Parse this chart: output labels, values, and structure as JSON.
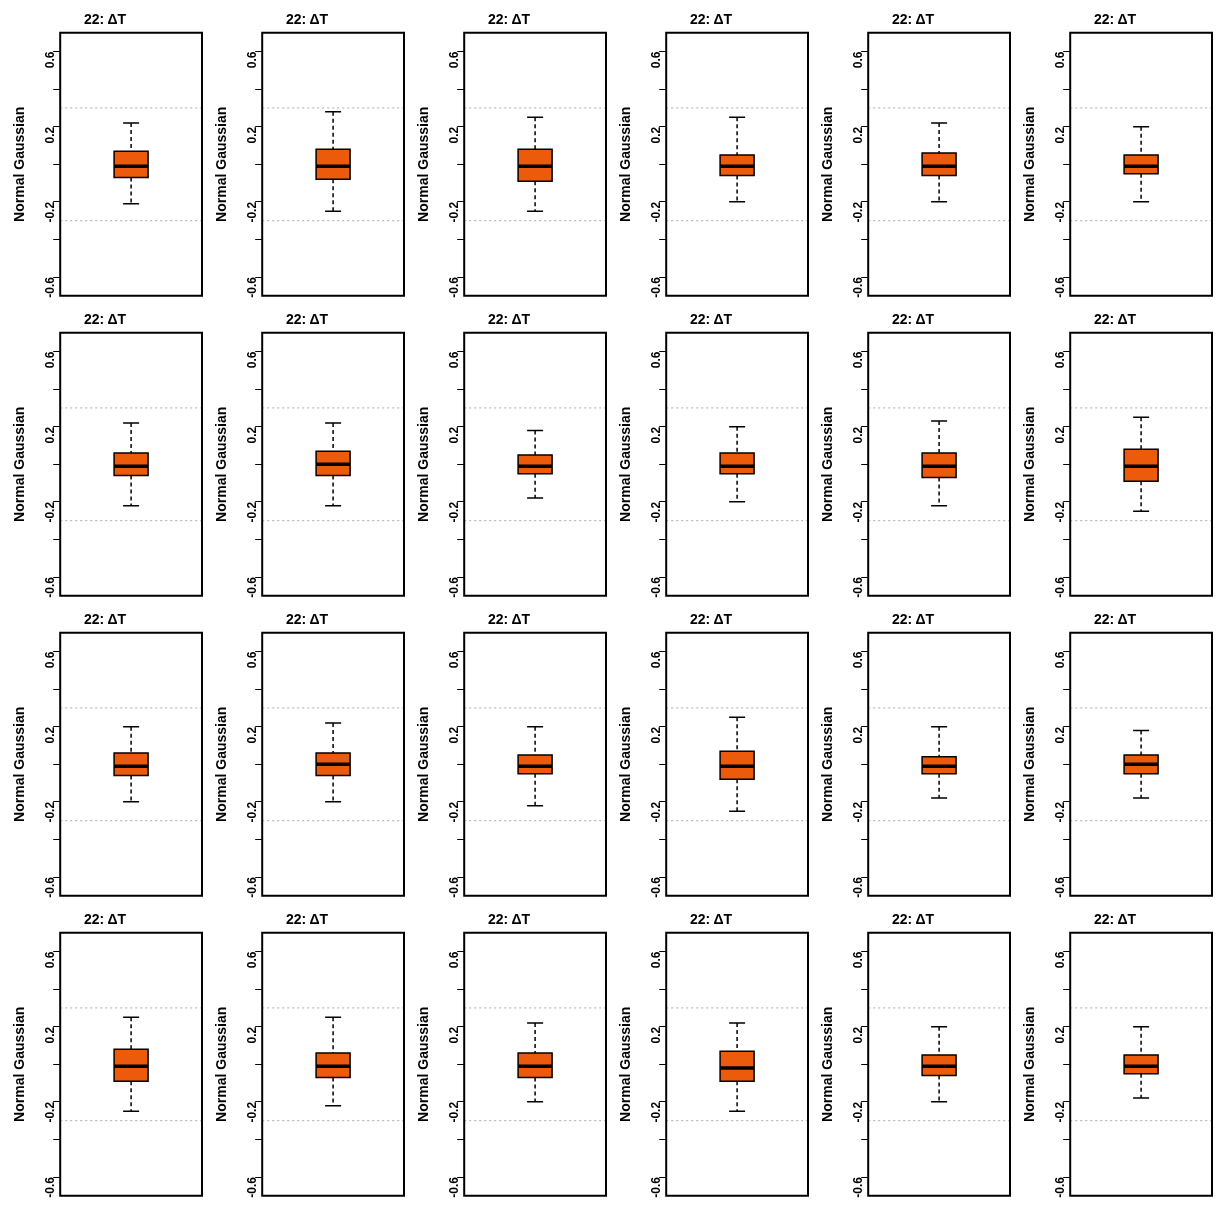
{
  "chart_data": [
    {
      "type": "box",
      "title": "22: ΔT",
      "ylabel": "Normal Gaussian",
      "categories": [
        null
      ],
      "color": "#ec5a0c",
      "ylim": [
        -0.7,
        0.7
      ],
      "yticks": [
        -0.6,
        {
          "value": -0.4,
          "label": null
        },
        -0.2,
        {
          "value": 0,
          "label": null
        },
        0.2,
        {
          "value": 0.4,
          "label": null
        },
        0.6
      ],
      "ref_lines": [
        {
          "axis": "y",
          "value": 0.3,
          "line_style": "dotted",
          "color": "#aaaaaa"
        },
        {
          "axis": "y",
          "value": -0.3,
          "line_style": "dotted",
          "color": "#aaaaaa"
        }
      ],
      "boxes": [
        {
          "low": -0.21,
          "q1": -0.07,
          "median": -0.01,
          "q3": 0.07,
          "high": 0.22
        }
      ]
    },
    {
      "type": "box",
      "title": "22: ΔT",
      "ylabel": "Normal Gaussian",
      "categories": [
        null
      ],
      "color": "#ec5a0c",
      "ylim": [
        -0.7,
        0.7
      ],
      "yticks": [
        -0.6,
        {
          "value": -0.4,
          "label": null
        },
        -0.2,
        {
          "value": 0,
          "label": null
        },
        0.2,
        {
          "value": 0.4,
          "label": null
        },
        0.6
      ],
      "ref_lines": [
        {
          "axis": "y",
          "value": 0.3,
          "line_style": "dotted",
          "color": "#aaaaaa"
        },
        {
          "axis": "y",
          "value": -0.3,
          "line_style": "dotted",
          "color": "#aaaaaa"
        }
      ],
      "boxes": [
        {
          "low": -0.25,
          "q1": -0.08,
          "median": -0.01,
          "q3": 0.08,
          "high": 0.28
        }
      ]
    },
    {
      "type": "box",
      "title": "22: ΔT",
      "ylabel": "Normal Gaussian",
      "categories": [
        null
      ],
      "color": "#ec5a0c",
      "ylim": [
        -0.7,
        0.7
      ],
      "yticks": [
        -0.6,
        {
          "value": -0.4,
          "label": null
        },
        -0.2,
        {
          "value": 0,
          "label": null
        },
        0.2,
        {
          "value": 0.4,
          "label": null
        },
        0.6
      ],
      "ref_lines": [
        {
          "axis": "y",
          "value": 0.3,
          "line_style": "dotted",
          "color": "#aaaaaa"
        },
        {
          "axis": "y",
          "value": -0.3,
          "line_style": "dotted",
          "color": "#aaaaaa"
        }
      ],
      "boxes": [
        {
          "low": -0.25,
          "q1": -0.09,
          "median": -0.01,
          "q3": 0.08,
          "high": 0.25
        }
      ]
    },
    {
      "type": "box",
      "title": "22: ΔT",
      "ylabel": "Normal Gaussian",
      "categories": [
        null
      ],
      "color": "#ec5a0c",
      "ylim": [
        -0.7,
        0.7
      ],
      "yticks": [
        -0.6,
        {
          "value": -0.4,
          "label": null
        },
        -0.2,
        {
          "value": 0,
          "label": null
        },
        0.2,
        {
          "value": 0.4,
          "label": null
        },
        0.6
      ],
      "ref_lines": [
        {
          "axis": "y",
          "value": 0.3,
          "line_style": "dotted",
          "color": "#aaaaaa"
        },
        {
          "axis": "y",
          "value": -0.3,
          "line_style": "dotted",
          "color": "#aaaaaa"
        }
      ],
      "boxes": [
        {
          "low": -0.2,
          "q1": -0.06,
          "median": -0.01,
          "q3": 0.05,
          "high": 0.25
        }
      ]
    },
    {
      "type": "box",
      "title": "22: ΔT",
      "ylabel": "Normal Gaussian",
      "categories": [
        null
      ],
      "color": "#ec5a0c",
      "ylim": [
        -0.7,
        0.7
      ],
      "yticks": [
        -0.6,
        {
          "value": -0.4,
          "label": null
        },
        -0.2,
        {
          "value": 0,
          "label": null
        },
        0.2,
        {
          "value": 0.4,
          "label": null
        },
        0.6
      ],
      "ref_lines": [
        {
          "axis": "y",
          "value": 0.3,
          "line_style": "dotted",
          "color": "#aaaaaa"
        },
        {
          "axis": "y",
          "value": -0.3,
          "line_style": "dotted",
          "color": "#aaaaaa"
        }
      ],
      "boxes": [
        {
          "low": -0.2,
          "q1": -0.06,
          "median": -0.01,
          "q3": 0.06,
          "high": 0.22
        }
      ]
    },
    {
      "type": "box",
      "title": "22: ΔT",
      "ylabel": "Normal Gaussian",
      "categories": [
        null
      ],
      "color": "#ec5a0c",
      "ylim": [
        -0.7,
        0.7
      ],
      "yticks": [
        -0.6,
        {
          "value": -0.4,
          "label": null
        },
        -0.2,
        {
          "value": 0,
          "label": null
        },
        0.2,
        {
          "value": 0.4,
          "label": null
        },
        0.6
      ],
      "ref_lines": [
        {
          "axis": "y",
          "value": 0.3,
          "line_style": "dotted",
          "color": "#aaaaaa"
        },
        {
          "axis": "y",
          "value": -0.3,
          "line_style": "dotted",
          "color": "#aaaaaa"
        }
      ],
      "boxes": [
        {
          "low": -0.2,
          "q1": -0.05,
          "median": -0.01,
          "q3": 0.05,
          "high": 0.2
        }
      ]
    },
    {
      "type": "box",
      "title": "22: ΔT",
      "ylabel": "Normal Gaussian",
      "categories": [
        null
      ],
      "color": "#ec5a0c",
      "ylim": [
        -0.7,
        0.7
      ],
      "yticks": [
        -0.6,
        {
          "value": -0.4,
          "label": null
        },
        -0.2,
        {
          "value": 0,
          "label": null
        },
        0.2,
        {
          "value": 0.4,
          "label": null
        },
        0.6
      ],
      "ref_lines": [
        {
          "axis": "y",
          "value": 0.3,
          "line_style": "dotted",
          "color": "#aaaaaa"
        },
        {
          "axis": "y",
          "value": -0.3,
          "line_style": "dotted",
          "color": "#aaaaaa"
        }
      ],
      "boxes": [
        {
          "low": -0.22,
          "q1": -0.06,
          "median": -0.01,
          "q3": 0.06,
          "high": 0.22
        }
      ]
    },
    {
      "type": "box",
      "title": "22: ΔT",
      "ylabel": "Normal Gaussian",
      "categories": [
        null
      ],
      "color": "#ec5a0c",
      "ylim": [
        -0.7,
        0.7
      ],
      "yticks": [
        -0.6,
        {
          "value": -0.4,
          "label": null
        },
        -0.2,
        {
          "value": 0,
          "label": null
        },
        0.2,
        {
          "value": 0.4,
          "label": null
        },
        0.6
      ],
      "ref_lines": [
        {
          "axis": "y",
          "value": 0.3,
          "line_style": "dotted",
          "color": "#aaaaaa"
        },
        {
          "axis": "y",
          "value": -0.3,
          "line_style": "dotted",
          "color": "#aaaaaa"
        }
      ],
      "boxes": [
        {
          "low": -0.22,
          "q1": -0.06,
          "median": 0,
          "q3": 0.07,
          "high": 0.22
        }
      ]
    },
    {
      "type": "box",
      "title": "22: ΔT",
      "ylabel": "Normal Gaussian",
      "categories": [
        null
      ],
      "color": "#ec5a0c",
      "ylim": [
        -0.7,
        0.7
      ],
      "yticks": [
        -0.6,
        {
          "value": -0.4,
          "label": null
        },
        -0.2,
        {
          "value": 0,
          "label": null
        },
        0.2,
        {
          "value": 0.4,
          "label": null
        },
        0.6
      ],
      "ref_lines": [
        {
          "axis": "y",
          "value": 0.3,
          "line_style": "dotted",
          "color": "#aaaaaa"
        },
        {
          "axis": "y",
          "value": -0.3,
          "line_style": "dotted",
          "color": "#aaaaaa"
        }
      ],
      "boxes": [
        {
          "low": -0.18,
          "q1": -0.05,
          "median": -0.01,
          "q3": 0.05,
          "high": 0.18
        }
      ]
    },
    {
      "type": "box",
      "title": "22: ΔT",
      "ylabel": "Normal Gaussian",
      "categories": [
        null
      ],
      "color": "#ec5a0c",
      "ylim": [
        -0.7,
        0.7
      ],
      "yticks": [
        -0.6,
        {
          "value": -0.4,
          "label": null
        },
        -0.2,
        {
          "value": 0,
          "label": null
        },
        0.2,
        {
          "value": 0.4,
          "label": null
        },
        0.6
      ],
      "ref_lines": [
        {
          "axis": "y",
          "value": 0.3,
          "line_style": "dotted",
          "color": "#aaaaaa"
        },
        {
          "axis": "y",
          "value": -0.3,
          "line_style": "dotted",
          "color": "#aaaaaa"
        }
      ],
      "boxes": [
        {
          "low": -0.2,
          "q1": -0.05,
          "median": -0.01,
          "q3": 0.06,
          "high": 0.2
        }
      ]
    },
    {
      "type": "box",
      "title": "22: ΔT",
      "ylabel": "Normal Gaussian",
      "categories": [
        null
      ],
      "color": "#ec5a0c",
      "ylim": [
        -0.7,
        0.7
      ],
      "yticks": [
        -0.6,
        {
          "value": -0.4,
          "label": null
        },
        -0.2,
        {
          "value": 0,
          "label": null
        },
        0.2,
        {
          "value": 0.4,
          "label": null
        },
        0.6
      ],
      "ref_lines": [
        {
          "axis": "y",
          "value": 0.3,
          "line_style": "dotted",
          "color": "#aaaaaa"
        },
        {
          "axis": "y",
          "value": -0.3,
          "line_style": "dotted",
          "color": "#aaaaaa"
        }
      ],
      "boxes": [
        {
          "low": -0.22,
          "q1": -0.07,
          "median": -0.01,
          "q3": 0.06,
          "high": 0.23
        }
      ]
    },
    {
      "type": "box",
      "title": "22: ΔT",
      "ylabel": "Normal Gaussian",
      "categories": [
        null
      ],
      "color": "#ec5a0c",
      "ylim": [
        -0.7,
        0.7
      ],
      "yticks": [
        -0.6,
        {
          "value": -0.4,
          "label": null
        },
        -0.2,
        {
          "value": 0,
          "label": null
        },
        0.2,
        {
          "value": 0.4,
          "label": null
        },
        0.6
      ],
      "ref_lines": [
        {
          "axis": "y",
          "value": 0.3,
          "line_style": "dotted",
          "color": "#aaaaaa"
        },
        {
          "axis": "y",
          "value": -0.3,
          "line_style": "dotted",
          "color": "#aaaaaa"
        }
      ],
      "boxes": [
        {
          "low": -0.25,
          "q1": -0.09,
          "median": -0.01,
          "q3": 0.08,
          "high": 0.25
        }
      ]
    },
    {
      "type": "box",
      "title": "22: ΔT",
      "ylabel": "Normal Gaussian",
      "categories": [
        null
      ],
      "color": "#ec5a0c",
      "ylim": [
        -0.7,
        0.7
      ],
      "yticks": [
        -0.6,
        {
          "value": -0.4,
          "label": null
        },
        -0.2,
        {
          "value": 0,
          "label": null
        },
        0.2,
        {
          "value": 0.4,
          "label": null
        },
        0.6
      ],
      "ref_lines": [
        {
          "axis": "y",
          "value": 0.3,
          "line_style": "dotted",
          "color": "#aaaaaa"
        },
        {
          "axis": "y",
          "value": -0.3,
          "line_style": "dotted",
          "color": "#aaaaaa"
        }
      ],
      "boxes": [
        {
          "low": -0.2,
          "q1": -0.06,
          "median": -0.01,
          "q3": 0.06,
          "high": 0.2
        }
      ]
    },
    {
      "type": "box",
      "title": "22: ΔT",
      "ylabel": "Normal Gaussian",
      "categories": [
        null
      ],
      "color": "#ec5a0c",
      "ylim": [
        -0.7,
        0.7
      ],
      "yticks": [
        -0.6,
        {
          "value": -0.4,
          "label": null
        },
        -0.2,
        {
          "value": 0,
          "label": null
        },
        0.2,
        {
          "value": 0.4,
          "label": null
        },
        0.6
      ],
      "ref_lines": [
        {
          "axis": "y",
          "value": 0.3,
          "line_style": "dotted",
          "color": "#aaaaaa"
        },
        {
          "axis": "y",
          "value": -0.3,
          "line_style": "dotted",
          "color": "#aaaaaa"
        }
      ],
      "boxes": [
        {
          "low": -0.2,
          "q1": -0.06,
          "median": 0,
          "q3": 0.06,
          "high": 0.22
        }
      ]
    },
    {
      "type": "box",
      "title": "22: ΔT",
      "ylabel": "Normal Gaussian",
      "categories": [
        null
      ],
      "color": "#ec5a0c",
      "ylim": [
        -0.7,
        0.7
      ],
      "yticks": [
        -0.6,
        {
          "value": -0.4,
          "label": null
        },
        -0.2,
        {
          "value": 0,
          "label": null
        },
        0.2,
        {
          "value": 0.4,
          "label": null
        },
        0.6
      ],
      "ref_lines": [
        {
          "axis": "y",
          "value": 0.3,
          "line_style": "dotted",
          "color": "#aaaaaa"
        },
        {
          "axis": "y",
          "value": -0.3,
          "line_style": "dotted",
          "color": "#aaaaaa"
        }
      ],
      "boxes": [
        {
          "low": -0.22,
          "q1": -0.05,
          "median": -0.01,
          "q3": 0.05,
          "high": 0.2
        }
      ]
    },
    {
      "type": "box",
      "title": "22: ΔT",
      "ylabel": "Normal Gaussian",
      "categories": [
        null
      ],
      "color": "#ec5a0c",
      "ylim": [
        -0.7,
        0.7
      ],
      "yticks": [
        -0.6,
        {
          "value": -0.4,
          "label": null
        },
        -0.2,
        {
          "value": 0,
          "label": null
        },
        0.2,
        {
          "value": 0.4,
          "label": null
        },
        0.6
      ],
      "ref_lines": [
        {
          "axis": "y",
          "value": 0.3,
          "line_style": "dotted",
          "color": "#aaaaaa"
        },
        {
          "axis": "y",
          "value": -0.3,
          "line_style": "dotted",
          "color": "#aaaaaa"
        }
      ],
      "boxes": [
        {
          "low": -0.25,
          "q1": -0.08,
          "median": -0.01,
          "q3": 0.07,
          "high": 0.25
        }
      ]
    },
    {
      "type": "box",
      "title": "22: ΔT",
      "ylabel": "Normal Gaussian",
      "categories": [
        null
      ],
      "color": "#ec5a0c",
      "ylim": [
        -0.7,
        0.7
      ],
      "yticks": [
        -0.6,
        {
          "value": -0.4,
          "label": null
        },
        -0.2,
        {
          "value": 0,
          "label": null
        },
        0.2,
        {
          "value": 0.4,
          "label": null
        },
        0.6
      ],
      "ref_lines": [
        {
          "axis": "y",
          "value": 0.3,
          "line_style": "dotted",
          "color": "#aaaaaa"
        },
        {
          "axis": "y",
          "value": -0.3,
          "line_style": "dotted",
          "color": "#aaaaaa"
        }
      ],
      "boxes": [
        {
          "low": -0.18,
          "q1": -0.05,
          "median": -0.01,
          "q3": 0.04,
          "high": 0.2
        }
      ]
    },
    {
      "type": "box",
      "title": "22: ΔT",
      "ylabel": "Normal Gaussian",
      "categories": [
        null
      ],
      "color": "#ec5a0c",
      "ylim": [
        -0.7,
        0.7
      ],
      "yticks": [
        -0.6,
        {
          "value": -0.4,
          "label": null
        },
        -0.2,
        {
          "value": 0,
          "label": null
        },
        0.2,
        {
          "value": 0.4,
          "label": null
        },
        0.6
      ],
      "ref_lines": [
        {
          "axis": "y",
          "value": 0.3,
          "line_style": "dotted",
          "color": "#aaaaaa"
        },
        {
          "axis": "y",
          "value": -0.3,
          "line_style": "dotted",
          "color": "#aaaaaa"
        }
      ],
      "boxes": [
        {
          "low": -0.18,
          "q1": -0.05,
          "median": 0,
          "q3": 0.05,
          "high": 0.18
        }
      ]
    },
    {
      "type": "box",
      "title": "22: ΔT",
      "ylabel": "Normal Gaussian",
      "categories": [
        null
      ],
      "color": "#ec5a0c",
      "ylim": [
        -0.7,
        0.7
      ],
      "yticks": [
        -0.6,
        {
          "value": -0.4,
          "label": null
        },
        -0.2,
        {
          "value": 0,
          "label": null
        },
        0.2,
        {
          "value": 0.4,
          "label": null
        },
        0.6
      ],
      "ref_lines": [
        {
          "axis": "y",
          "value": 0.3,
          "line_style": "dotted",
          "color": "#aaaaaa"
        },
        {
          "axis": "y",
          "value": -0.3,
          "line_style": "dotted",
          "color": "#aaaaaa"
        }
      ],
      "boxes": [
        {
          "low": -0.25,
          "q1": -0.09,
          "median": -0.01,
          "q3": 0.08,
          "high": 0.25
        }
      ]
    },
    {
      "type": "box",
      "title": "22: ΔT",
      "ylabel": "Normal Gaussian",
      "categories": [
        null
      ],
      "color": "#ec5a0c",
      "ylim": [
        -0.7,
        0.7
      ],
      "yticks": [
        -0.6,
        {
          "value": -0.4,
          "label": null
        },
        -0.2,
        {
          "value": 0,
          "label": null
        },
        0.2,
        {
          "value": 0.4,
          "label": null
        },
        0.6
      ],
      "ref_lines": [
        {
          "axis": "y",
          "value": 0.3,
          "line_style": "dotted",
          "color": "#aaaaaa"
        },
        {
          "axis": "y",
          "value": -0.3,
          "line_style": "dotted",
          "color": "#aaaaaa"
        }
      ],
      "boxes": [
        {
          "low": -0.22,
          "q1": -0.07,
          "median": -0.01,
          "q3": 0.06,
          "high": 0.25
        }
      ]
    },
    {
      "type": "box",
      "title": "22: ΔT",
      "ylabel": "Normal Gaussian",
      "categories": [
        null
      ],
      "color": "#ec5a0c",
      "ylim": [
        -0.7,
        0.7
      ],
      "yticks": [
        -0.6,
        {
          "value": -0.4,
          "label": null
        },
        -0.2,
        {
          "value": 0,
          "label": null
        },
        0.2,
        {
          "value": 0.4,
          "label": null
        },
        0.6
      ],
      "ref_lines": [
        {
          "axis": "y",
          "value": 0.3,
          "line_style": "dotted",
          "color": "#aaaaaa"
        },
        {
          "axis": "y",
          "value": -0.3,
          "line_style": "dotted",
          "color": "#aaaaaa"
        }
      ],
      "boxes": [
        {
          "low": -0.2,
          "q1": -0.07,
          "median": -0.01,
          "q3": 0.06,
          "high": 0.22
        }
      ]
    },
    {
      "type": "box",
      "title": "22: ΔT",
      "ylabel": "Normal Gaussian",
      "categories": [
        null
      ],
      "color": "#ec5a0c",
      "ylim": [
        -0.7,
        0.7
      ],
      "yticks": [
        -0.6,
        {
          "value": -0.4,
          "label": null
        },
        -0.2,
        {
          "value": 0,
          "label": null
        },
        0.2,
        {
          "value": 0.4,
          "label": null
        },
        0.6
      ],
      "ref_lines": [
        {
          "axis": "y",
          "value": 0.3,
          "line_style": "dotted",
          "color": "#aaaaaa"
        },
        {
          "axis": "y",
          "value": -0.3,
          "line_style": "dotted",
          "color": "#aaaaaa"
        }
      ],
      "boxes": [
        {
          "low": -0.25,
          "q1": -0.09,
          "median": -0.02,
          "q3": 0.07,
          "high": 0.22
        }
      ]
    },
    {
      "type": "box",
      "title": "22: ΔT",
      "ylabel": "Normal Gaussian",
      "categories": [
        null
      ],
      "color": "#ec5a0c",
      "ylim": [
        -0.7,
        0.7
      ],
      "yticks": [
        -0.6,
        {
          "value": -0.4,
          "label": null
        },
        -0.2,
        {
          "value": 0,
          "label": null
        },
        0.2,
        {
          "value": 0.4,
          "label": null
        },
        0.6
      ],
      "ref_lines": [
        {
          "axis": "y",
          "value": 0.3,
          "line_style": "dotted",
          "color": "#aaaaaa"
        },
        {
          "axis": "y",
          "value": -0.3,
          "line_style": "dotted",
          "color": "#aaaaaa"
        }
      ],
      "boxes": [
        {
          "low": -0.2,
          "q1": -0.06,
          "median": -0.01,
          "q3": 0.05,
          "high": 0.2
        }
      ]
    },
    {
      "type": "box",
      "title": "22: ΔT",
      "ylabel": "Normal Gaussian",
      "categories": [
        null
      ],
      "color": "#ec5a0c",
      "ylim": [
        -0.7,
        0.7
      ],
      "yticks": [
        -0.6,
        {
          "value": -0.4,
          "label": null
        },
        -0.2,
        {
          "value": 0,
          "label": null
        },
        0.2,
        {
          "value": 0.4,
          "label": null
        },
        0.6
      ],
      "ref_lines": [
        {
          "axis": "y",
          "value": 0.3,
          "line_style": "dotted",
          "color": "#aaaaaa"
        },
        {
          "axis": "y",
          "value": -0.3,
          "line_style": "dotted",
          "color": "#aaaaaa"
        }
      ],
      "boxes": [
        {
          "low": -0.18,
          "q1": -0.05,
          "median": -0.01,
          "q3": 0.05,
          "high": 0.2
        }
      ]
    }
  ]
}
